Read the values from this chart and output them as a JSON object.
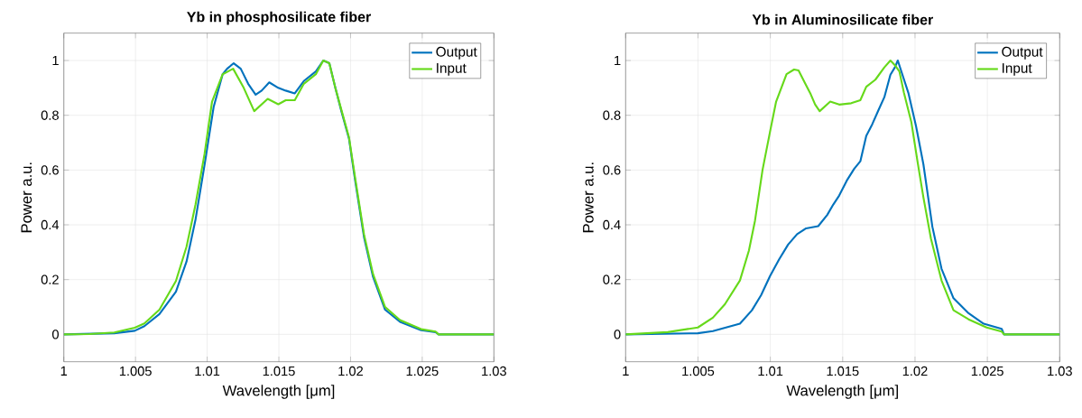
{
  "chart_data": [
    {
      "type": "line",
      "title": "**Yb in phosphosilicate fiber**",
      "xlabel": "Wavelength [μm]",
      "ylabel": "Power a.u.",
      "xlim": [
        1,
        1.03
      ],
      "ylim": [
        -0.1,
        1.1
      ],
      "xticks": [
        1,
        1.005,
        1.01,
        1.015,
        1.02,
        1.025,
        1.03
      ],
      "yticks": [
        0,
        0.2,
        0.4,
        0.6,
        0.8,
        1
      ],
      "grid": true,
      "legend": "top right",
      "series": [
        {
          "name": "Output",
          "color": "#0072bd",
          "x": [
            1,
            1.00352,
            1.00495,
            1.00562,
            1.00667,
            1.00782,
            1.00856,
            1.00919,
            1.00982,
            1.01045,
            1.01108,
            1.01139,
            1.01185,
            1.01234,
            1.01286,
            1.01338,
            1.0138,
            1.01433,
            1.01496,
            1.01548,
            1.01611,
            1.01674,
            1.01758,
            1.0181,
            1.01852,
            1.01894,
            1.01936,
            1.01989,
            1.02031,
            1.02094,
            1.02157,
            1.02241,
            1.02345,
            1.02492,
            1.02593,
            1.02614,
            1.03
          ],
          "values": [
            0,
            0.004,
            0.013,
            0.03,
            0.074,
            0.156,
            0.266,
            0.42,
            0.62,
            0.83,
            0.95,
            0.97,
            0.99,
            0.97,
            0.915,
            0.875,
            0.89,
            0.92,
            0.9,
            0.89,
            0.88,
            0.925,
            0.96,
            1.0,
            0.99,
            0.9,
            0.815,
            0.715,
            0.565,
            0.355,
            0.21,
            0.09,
            0.046,
            0.015,
            0.008,
            0,
            0
          ]
        },
        {
          "name": "Input",
          "color": "#66d91a",
          "x": [
            1,
            1.0018,
            1.00352,
            1.00495,
            1.00562,
            1.00667,
            1.00782,
            1.00856,
            1.00919,
            1.00982,
            1.01034,
            1.01108,
            1.01181,
            1.01255,
            1.01328,
            1.01422,
            1.01496,
            1.01548,
            1.01611,
            1.01674,
            1.01758,
            1.0181,
            1.01852,
            1.01894,
            1.01936,
            1.01989,
            1.02031,
            1.02094,
            1.02157,
            1.02241,
            1.02345,
            1.02492,
            1.02593,
            1.02614,
            1.03
          ],
          "values": [
            0,
            0.001,
            0.007,
            0.024,
            0.04,
            0.09,
            0.195,
            0.32,
            0.475,
            0.66,
            0.85,
            0.95,
            0.97,
            0.9,
            0.815,
            0.86,
            0.84,
            0.855,
            0.855,
            0.915,
            0.95,
            1.0,
            0.99,
            0.9,
            0.82,
            0.72,
            0.575,
            0.365,
            0.22,
            0.1,
            0.052,
            0.019,
            0.01,
            0,
            0
          ]
        }
      ]
    },
    {
      "type": "line",
      "title": "**Yb in Aluminosilicate fiber**",
      "xlabel": "Wavelength [μm]",
      "ylabel": "Power a.u.",
      "xlim": [
        1,
        1.03
      ],
      "ylim": [
        -0.1,
        1.1
      ],
      "xticks": [
        1,
        1.005,
        1.01,
        1.015,
        1.02,
        1.025,
        1.03
      ],
      "yticks": [
        0,
        0.2,
        0.4,
        0.6,
        0.8,
        1
      ],
      "grid": true,
      "legend": "top right",
      "series": [
        {
          "name": "Output",
          "color": "#0072bd",
          "x": [
            1,
            1.00499,
            1.00603,
            1.0079,
            1.00873,
            1.00936,
            1.00998,
            1.0106,
            1.01123,
            1.01185,
            1.01247,
            1.01331,
            1.01393,
            1.01435,
            1.01476,
            1.01528,
            1.0158,
            1.01622,
            1.01663,
            1.01705,
            1.01746,
            1.01788,
            1.0183,
            1.01861,
            1.01881,
            1.01913,
            1.01954,
            1.02006,
            1.02058,
            1.0212,
            1.02183,
            1.02266,
            1.0237,
            1.02474,
            1.02599,
            1.02615,
            1.03
          ],
          "values": [
            0,
            0.004,
            0.012,
            0.039,
            0.088,
            0.143,
            0.213,
            0.273,
            0.328,
            0.366,
            0.387,
            0.395,
            0.436,
            0.474,
            0.507,
            0.561,
            0.605,
            0.632,
            0.725,
            0.768,
            0.817,
            0.866,
            0.948,
            0.975,
            1.0,
            0.948,
            0.882,
            0.763,
            0.621,
            0.393,
            0.24,
            0.132,
            0.077,
            0.039,
            0.02,
            0,
            0
          ]
        },
        {
          "name": "Input",
          "color": "#66d91a",
          "x": [
            1,
            1.00291,
            1.00499,
            1.00603,
            1.00686,
            1.0079,
            1.00852,
            1.00894,
            1.00946,
            1.00998,
            1.0104,
            1.01112,
            1.01164,
            1.01195,
            1.01237,
            1.01279,
            1.0131,
            1.01341,
            1.01414,
            1.01476,
            1.01559,
            1.01622,
            1.01663,
            1.01726,
            1.01788,
            1.0183,
            1.01861,
            1.01892,
            1.01923,
            1.01975,
            1.02017,
            1.02058,
            1.0211,
            1.02183,
            1.02266,
            1.0237,
            1.02495,
            1.02599,
            1.02615,
            1.03
          ],
          "values": [
            0,
            0.008,
            0.025,
            0.061,
            0.11,
            0.197,
            0.306,
            0.415,
            0.6,
            0.74,
            0.85,
            0.95,
            0.967,
            0.964,
            0.92,
            0.877,
            0.839,
            0.815,
            0.85,
            0.839,
            0.844,
            0.855,
            0.904,
            0.93,
            0.975,
            1.0,
            0.983,
            0.96,
            0.883,
            0.774,
            0.632,
            0.5,
            0.35,
            0.197,
            0.088,
            0.055,
            0.025,
            0.01,
            0,
            0
          ]
        }
      ]
    }
  ]
}
